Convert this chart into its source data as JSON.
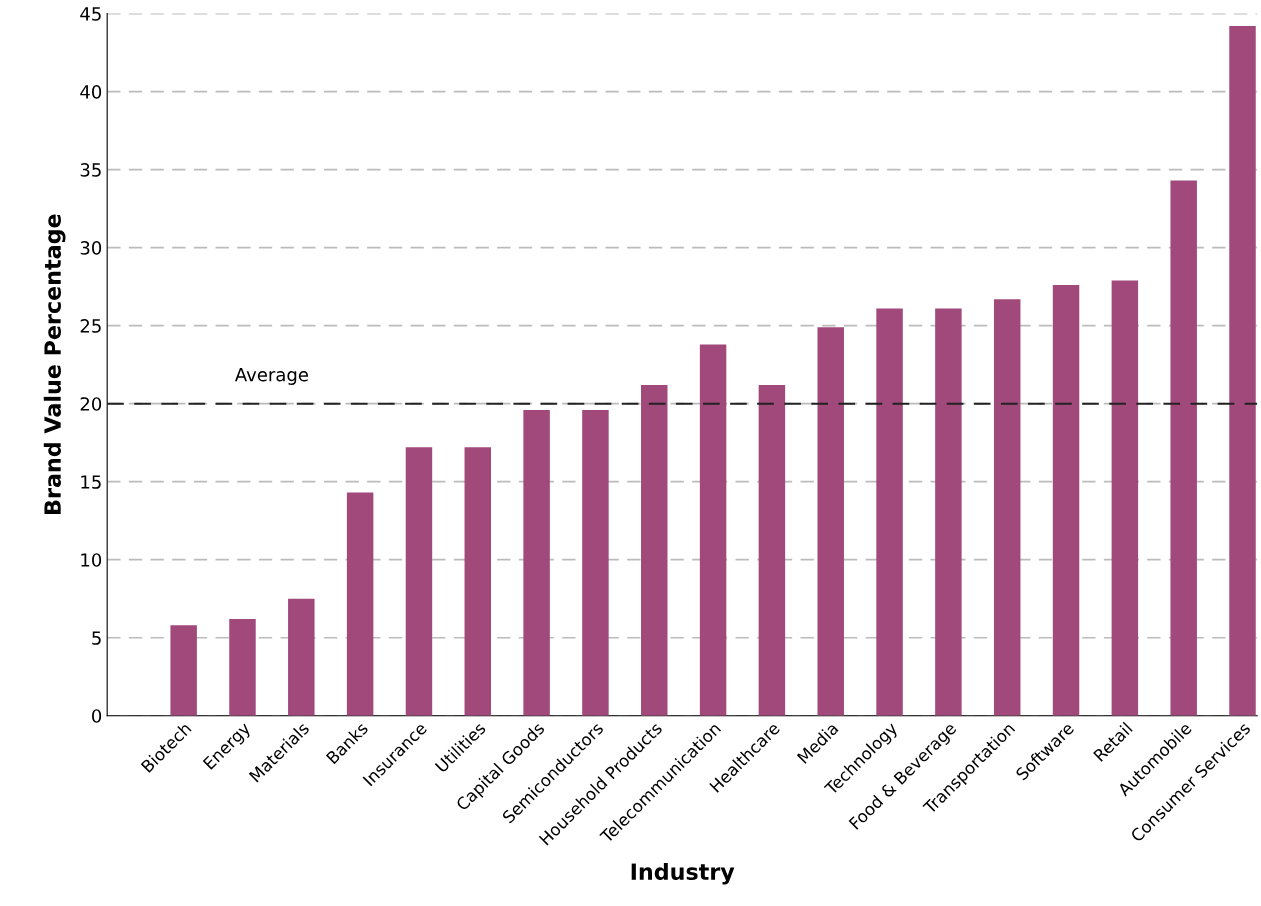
{
  "chart_data": {
    "type": "bar",
    "xlabel": "Industry",
    "ylabel": "Brand Value Percentage",
    "categories": [
      "Biotech",
      "Energy",
      "Materials",
      "Banks",
      "Insurance",
      "Utilities",
      "Capital Goods",
      "Semiconductors",
      "Household Products",
      "Telecommunication",
      "Healthcare",
      "Media",
      "Technology",
      "Food & Beverage",
      "Transportation",
      "Software",
      "Retail",
      "Automobile",
      "Consumer Services"
    ],
    "values": [
      5.8,
      6.2,
      7.5,
      14.3,
      17.2,
      17.2,
      19.6,
      19.6,
      21.2,
      23.8,
      21.2,
      24.9,
      26.1,
      26.1,
      26.7,
      27.6,
      27.9,
      34.3,
      44.2
    ],
    "color": "#a0497a",
    "ylim": [
      0,
      45
    ],
    "yticks": [
      0,
      5,
      10,
      15,
      20,
      25,
      30,
      35,
      40,
      45
    ],
    "grid": "y",
    "ref_lines": [
      {
        "axis": "y",
        "value": 20,
        "label": "Average",
        "color": "#222222",
        "line_style": "dashed"
      }
    ]
  }
}
